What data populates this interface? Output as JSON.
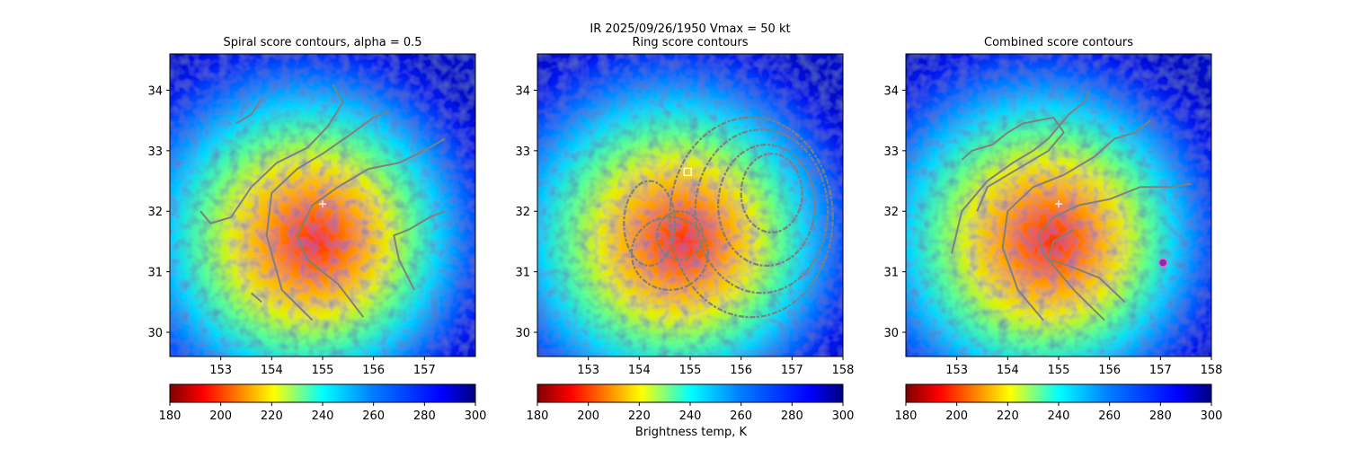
{
  "figure": {
    "suptitle": "IR  2025/09/26/1950    Vmax = 50 kt",
    "colorbar_label": "Brightness temp, K"
  },
  "chart_data": [
    {
      "type": "heatmap",
      "title": "Spiral score contours, alpha =  0.5",
      "xlim": [
        152.0,
        158.0
      ],
      "ylim": [
        29.6,
        34.6
      ],
      "xticks": [
        153,
        154,
        155,
        156,
        157
      ],
      "yticks": [
        30,
        31,
        32,
        33,
        34
      ],
      "colorbar": {
        "min": 180,
        "max": 300,
        "ticks": [
          180,
          200,
          220,
          240,
          260,
          280,
          300
        ],
        "colormap": "jet_r"
      },
      "center_marker": {
        "x": 155.0,
        "y": 32.12,
        "symbol": "+"
      },
      "contours": [
        [
          [
            153.3,
            33.45
          ],
          [
            153.6,
            33.6
          ],
          [
            153.8,
            33.85
          ]
        ],
        [
          [
            152.6,
            32.0
          ],
          [
            152.8,
            31.8
          ],
          [
            153.2,
            31.9
          ],
          [
            153.6,
            32.4
          ],
          [
            154.1,
            32.8
          ],
          [
            154.7,
            33.05
          ],
          [
            155.1,
            33.4
          ],
          [
            155.4,
            33.8
          ],
          [
            155.2,
            34.1
          ]
        ],
        [
          [
            153.6,
            30.65
          ],
          [
            153.8,
            30.5
          ]
        ],
        [
          [
            154.8,
            30.2
          ],
          [
            154.2,
            30.7
          ],
          [
            153.9,
            31.6
          ],
          [
            154.0,
            32.3
          ],
          [
            154.5,
            32.7
          ],
          [
            155.0,
            32.95
          ],
          [
            155.6,
            33.3
          ],
          [
            156.0,
            33.55
          ],
          [
            156.3,
            33.65
          ]
        ],
        [
          [
            155.8,
            30.25
          ],
          [
            155.3,
            30.8
          ],
          [
            154.7,
            31.2
          ],
          [
            154.5,
            31.6
          ],
          [
            154.8,
            32.1
          ],
          [
            155.3,
            32.4
          ],
          [
            155.9,
            32.7
          ],
          [
            156.5,
            32.8
          ],
          [
            157.0,
            33.0
          ],
          [
            157.4,
            33.2
          ]
        ],
        [
          [
            156.8,
            30.7
          ],
          [
            156.5,
            31.2
          ],
          [
            156.4,
            31.6
          ],
          [
            156.7,
            31.7
          ],
          [
            157.1,
            31.9
          ],
          [
            157.4,
            32.0
          ]
        ]
      ]
    },
    {
      "type": "heatmap",
      "title": "Ring score contours",
      "xlim": [
        152.0,
        158.0
      ],
      "ylim": [
        29.6,
        34.6
      ],
      "xticks": [
        153,
        154,
        155,
        156,
        157,
        158
      ],
      "yticks": [
        30,
        31,
        32,
        33,
        34
      ],
      "colorbar": {
        "min": 180,
        "max": 300,
        "ticks": [
          180,
          200,
          220,
          240,
          260,
          280,
          300
        ],
        "colormap": "jet_r"
      },
      "square_marker": {
        "x": 154.95,
        "y": 32.65
      },
      "ring_contours": [
        {
          "cx": 156.2,
          "cy": 31.9,
          "rx": 1.6,
          "ry": 1.65
        },
        {
          "cx": 156.4,
          "cy": 32.0,
          "rx": 1.3,
          "ry": 1.35
        },
        {
          "cx": 156.5,
          "cy": 32.1,
          "rx": 0.95,
          "ry": 1.0
        },
        {
          "cx": 156.6,
          "cy": 32.3,
          "rx": 0.6,
          "ry": 0.65
        },
        {
          "cx": 154.6,
          "cy": 31.3,
          "rx": 0.75,
          "ry": 0.6
        },
        {
          "cx": 154.8,
          "cy": 31.6,
          "rx": 0.45,
          "ry": 0.4
        },
        {
          "cx": 154.2,
          "cy": 31.8,
          "rx": 0.5,
          "ry": 0.7
        }
      ]
    },
    {
      "type": "heatmap",
      "title": "Combined score contours",
      "xlim": [
        152.0,
        158.0
      ],
      "ylim": [
        29.6,
        34.6
      ],
      "xticks": [
        153,
        154,
        155,
        156,
        157,
        158
      ],
      "yticks": [
        30,
        31,
        32,
        33,
        34
      ],
      "colorbar": {
        "min": 180,
        "max": 300,
        "ticks": [
          180,
          200,
          220,
          240,
          260,
          280,
          300
        ],
        "colormap": "jet_r"
      },
      "center_marker": {
        "x": 155.0,
        "y": 32.12,
        "symbol": "+"
      },
      "circle_marker": {
        "x": 157.05,
        "y": 31.15
      },
      "contours": [
        [
          [
            153.1,
            32.85
          ],
          [
            153.3,
            33.0
          ],
          [
            153.7,
            33.1
          ],
          [
            154.0,
            33.3
          ],
          [
            154.3,
            33.45
          ],
          [
            154.6,
            33.5
          ],
          [
            154.9,
            33.55
          ],
          [
            155.1,
            33.3
          ],
          [
            154.8,
            33.0
          ],
          [
            154.4,
            32.8
          ],
          [
            154.0,
            32.6
          ],
          [
            153.6,
            32.4
          ],
          [
            153.4,
            32.0
          ]
        ],
        [
          [
            152.9,
            31.3
          ],
          [
            153.1,
            32.0
          ],
          [
            153.6,
            32.5
          ],
          [
            154.1,
            32.8
          ],
          [
            154.5,
            33.0
          ],
          [
            154.8,
            33.2
          ],
          [
            155.2,
            33.6
          ],
          [
            155.5,
            33.8
          ],
          [
            155.6,
            34.0
          ]
        ],
        [
          [
            154.7,
            30.2
          ],
          [
            154.2,
            30.7
          ],
          [
            153.9,
            31.4
          ],
          [
            154.0,
            32.0
          ],
          [
            154.5,
            32.4
          ],
          [
            155.1,
            32.6
          ],
          [
            155.7,
            32.9
          ],
          [
            156.1,
            33.2
          ],
          [
            156.5,
            33.3
          ],
          [
            156.8,
            33.5
          ]
        ],
        [
          [
            155.9,
            30.2
          ],
          [
            155.3,
            30.7
          ],
          [
            154.7,
            31.3
          ],
          [
            154.6,
            31.6
          ],
          [
            154.9,
            31.9
          ],
          [
            155.4,
            32.1
          ],
          [
            156.0,
            32.2
          ],
          [
            156.6,
            32.4
          ],
          [
            157.2,
            32.4
          ],
          [
            157.6,
            32.45
          ]
        ],
        [
          [
            156.3,
            30.5
          ],
          [
            155.8,
            30.9
          ],
          [
            155.2,
            31.1
          ],
          [
            154.8,
            31.2
          ],
          [
            154.9,
            31.5
          ],
          [
            155.3,
            31.7
          ]
        ]
      ]
    }
  ]
}
